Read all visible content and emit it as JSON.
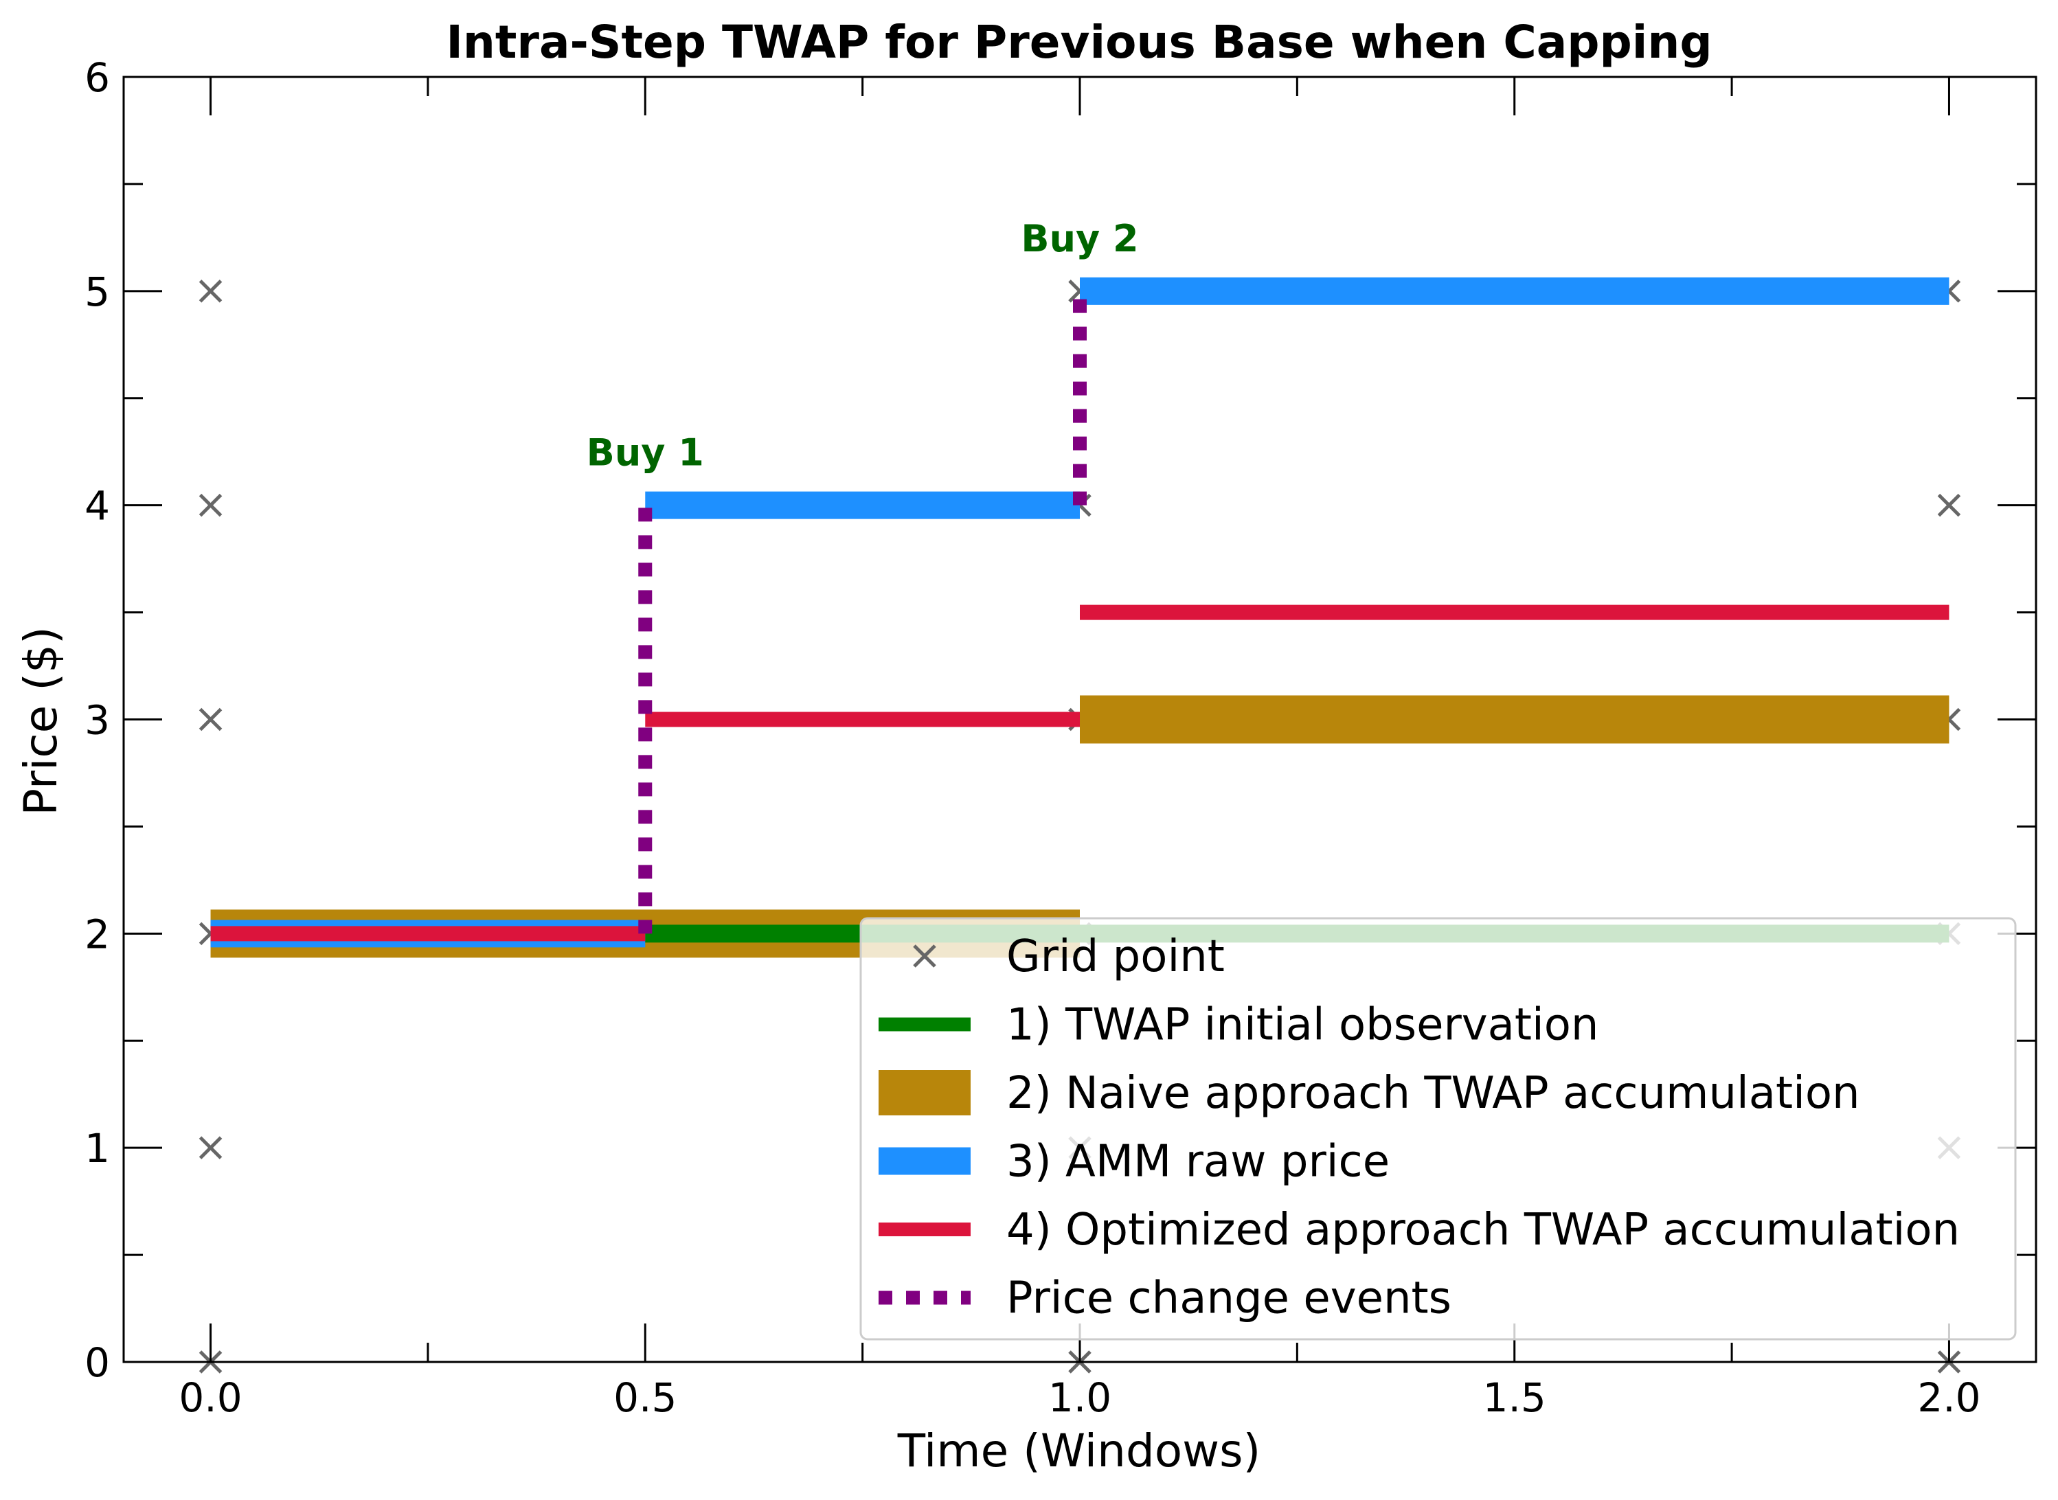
{
  "chart_data": {
    "type": "line",
    "title": "Intra-Step TWAP for Previous Base when Capping",
    "xlabel": "Time (Windows)",
    "ylabel": "Price ($)",
    "xlim": [
      -0.1,
      2.1
    ],
    "ylim": [
      0,
      6
    ],
    "xticks": [
      0.0,
      0.5,
      1.0,
      1.5,
      2.0
    ],
    "xtick_labels": [
      "0.0",
      "0.5",
      "1.0",
      "1.5",
      "2.0"
    ],
    "yticks": [
      0,
      1,
      2,
      3,
      4,
      5,
      6
    ],
    "ytick_labels": [
      "0",
      "1",
      "2",
      "3",
      "4",
      "5",
      "6"
    ],
    "xminor": [
      0.25,
      0.75,
      1.25,
      1.75
    ],
    "yminor": [
      0.5,
      1.5,
      2.5,
      3.5,
      4.5,
      5.5
    ],
    "grid": false,
    "legend_position": "lower-right",
    "grid_points": {
      "name": "Grid point",
      "color": "#666666",
      "points": [
        [
          0,
          0
        ],
        [
          0,
          1
        ],
        [
          0,
          2
        ],
        [
          0,
          3
        ],
        [
          0,
          4
        ],
        [
          0,
          5
        ],
        [
          1,
          0
        ],
        [
          1,
          1
        ],
        [
          1,
          2
        ],
        [
          1,
          3
        ],
        [
          1,
          4
        ],
        [
          1,
          5
        ],
        [
          2,
          0
        ],
        [
          2,
          1
        ],
        [
          2,
          2
        ],
        [
          2,
          3
        ],
        [
          2,
          4
        ],
        [
          2,
          5
        ]
      ]
    },
    "series": [
      {
        "name": "2) Naive approach TWAP accumulation",
        "color": "#b8860b",
        "segments": [
          {
            "x": [
              0.0,
              1.0
            ],
            "y": [
              2,
              2
            ]
          },
          {
            "x": [
              1.0,
              2.0
            ],
            "y": [
              3,
              3
            ]
          }
        ]
      },
      {
        "name": "1) TWAP initial observation",
        "color": "#008000",
        "segments": [
          {
            "x": [
              0.0,
              2.0
            ],
            "y": [
              2,
              2
            ]
          }
        ]
      },
      {
        "name": "3) AMM raw price",
        "color": "#1e90ff",
        "segments": [
          {
            "x": [
              0.0,
              0.5
            ],
            "y": [
              2,
              2
            ]
          },
          {
            "x": [
              0.5,
              1.0
            ],
            "y": [
              4,
              4
            ]
          },
          {
            "x": [
              1.0,
              2.0
            ],
            "y": [
              5,
              5
            ]
          }
        ]
      },
      {
        "name": "4) Optimized approach TWAP accumulation",
        "color": "#dc143c",
        "segments": [
          {
            "x": [
              0.0,
              0.5
            ],
            "y": [
              2,
              2
            ]
          },
          {
            "x": [
              0.5,
              1.0
            ],
            "y": [
              3,
              3
            ]
          },
          {
            "x": [
              1.0,
              2.0
            ],
            "y": [
              3.5,
              3.5
            ]
          }
        ]
      },
      {
        "name": "Price change events",
        "color": "#800080",
        "segments": [
          {
            "x": [
              0.5,
              0.5
            ],
            "y": [
              2,
              4
            ]
          },
          {
            "x": [
              1.0,
              1.0
            ],
            "y": [
              4,
              5
            ]
          }
        ]
      }
    ],
    "annotations": [
      {
        "text": "Buy 1",
        "x": 0.5,
        "y": 4.25,
        "color": "#006400"
      },
      {
        "text": "Buy 2",
        "x": 1.0,
        "y": 5.25,
        "color": "#006400"
      }
    ],
    "legend": [
      {
        "label": "Grid point",
        "marker": "x",
        "color": "#666666"
      },
      {
        "label": "1) TWAP initial observation",
        "marker": "line",
        "color": "#008000"
      },
      {
        "label": "2) Naive approach TWAP accumulation",
        "marker": "thick",
        "color": "#b8860b"
      },
      {
        "label": "3) AMM raw price",
        "marker": "thick",
        "color": "#1e90ff"
      },
      {
        "label": "4) Optimized approach TWAP accumulation",
        "marker": "line",
        "color": "#dc143c"
      },
      {
        "label": "Price change events",
        "marker": "dotted",
        "color": "#800080"
      }
    ]
  }
}
